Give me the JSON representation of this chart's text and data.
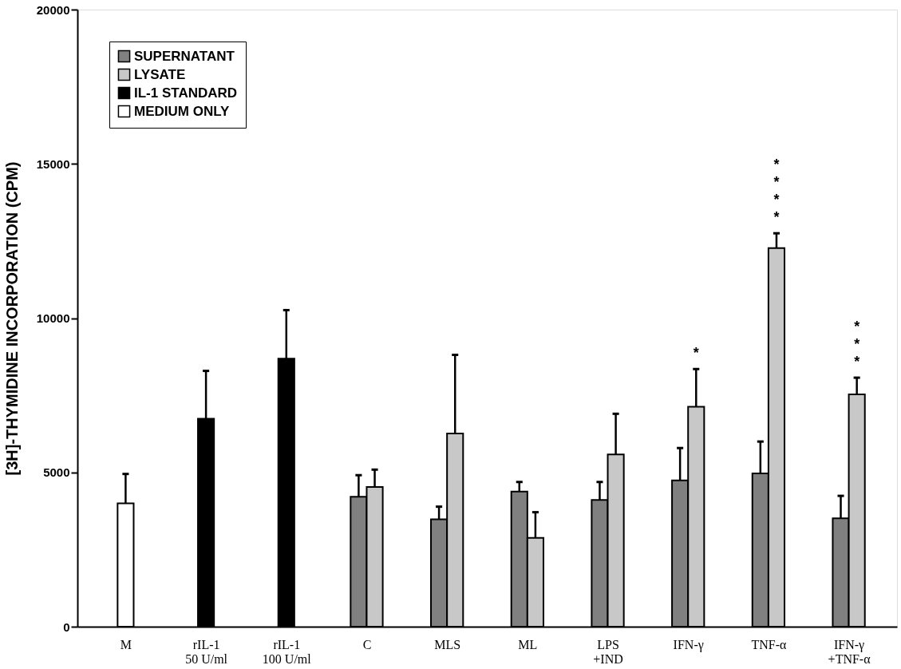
{
  "chart_data": {
    "type": "bar",
    "ylabel": "[3H]-THYMIDINE INCORPORATION (CPM)",
    "categories": [
      "M",
      "rIL-1\n50 U/ml",
      "rIL-1\n100 U/ml",
      "C",
      "MLS",
      "ML",
      "LPS\n+IND",
      "IFN-γ",
      "TNF-α",
      "IFN-γ\n+TNF-α"
    ],
    "series": [
      {
        "name": "SUPERNATANT",
        "color": "#808080",
        "values": [
          null,
          null,
          null,
          4210,
          3480,
          4380,
          4110,
          4740,
          4970,
          3510
        ],
        "errors": [
          null,
          null,
          null,
          700,
          410,
          310,
          580,
          1050,
          1030,
          730
        ]
      },
      {
        "name": "LYSATE",
        "color": "#c8c8c8",
        "values": [
          null,
          null,
          null,
          4530,
          6260,
          2880,
          5580,
          7130,
          12270,
          7530
        ],
        "errors": [
          null,
          null,
          null,
          560,
          2550,
          830,
          1320,
          1220,
          480,
          540
        ],
        "value_labels": [
          null,
          null,
          null,
          null,
          null,
          null,
          null,
          "*",
          "****",
          "***"
        ]
      },
      {
        "name": "IL-1 STANDARD",
        "color": "#000000",
        "values": [
          null,
          6740,
          8690,
          null,
          null,
          null,
          null,
          null,
          null,
          null
        ],
        "errors": [
          null,
          1550,
          1570,
          null,
          null,
          null,
          null,
          null,
          null,
          null
        ]
      },
      {
        "name": "MEDIUM ONLY",
        "color": "#ffffff",
        "values": [
          4000,
          null,
          null,
          null,
          null,
          null,
          null,
          null,
          null,
          null
        ],
        "errors": [
          950,
          null,
          null,
          null,
          null,
          null,
          null,
          null,
          null,
          null
        ]
      }
    ],
    "ylim": [
      0,
      20000
    ],
    "yticks": [
      0,
      5000,
      10000,
      15000,
      20000
    ],
    "legend": "top left",
    "grid": false
  }
}
